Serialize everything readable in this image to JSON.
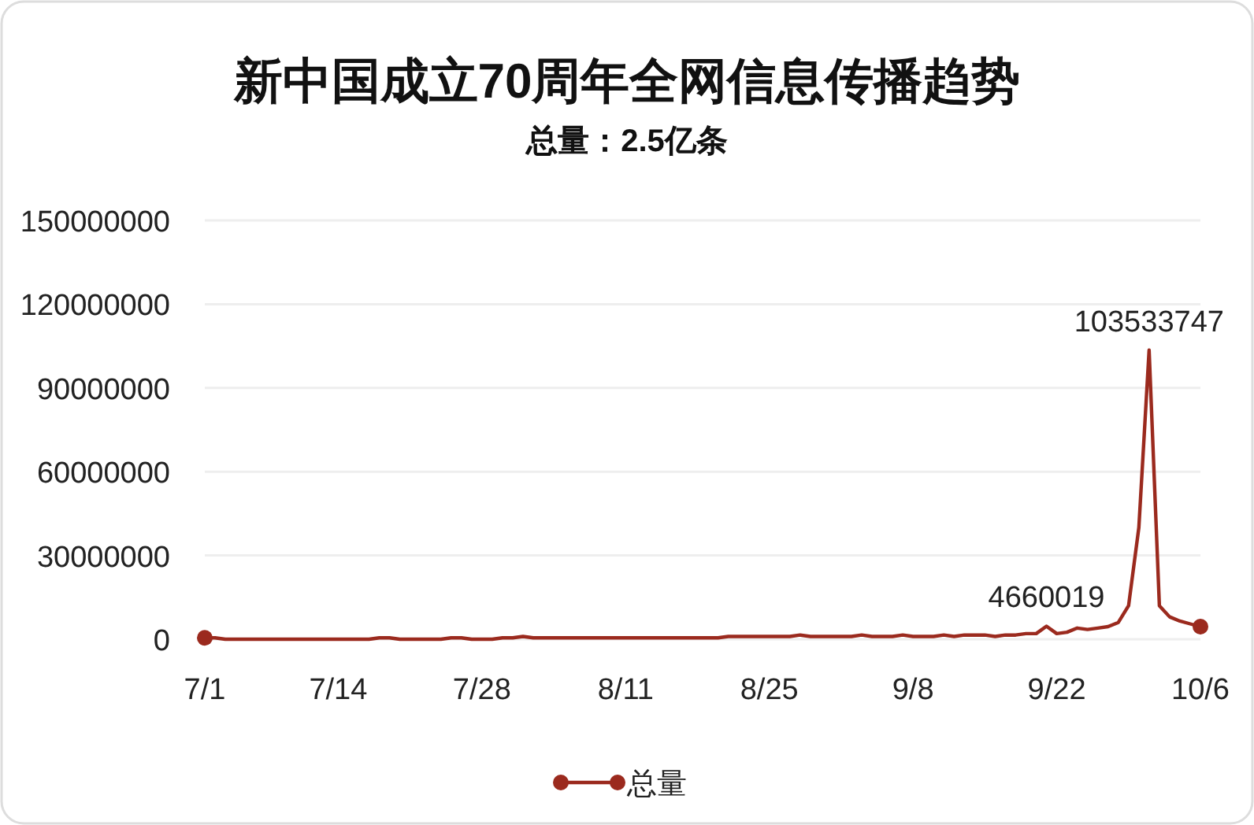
{
  "chart_data": {
    "type": "line",
    "title": "新中国成立70周年全网信息传播趋势",
    "subtitle": "总量：2.5亿条",
    "categories": [
      "7/1",
      null,
      null,
      null,
      null,
      null,
      null,
      null,
      null,
      null,
      null,
      null,
      null,
      "7/14",
      null,
      null,
      null,
      null,
      null,
      null,
      null,
      null,
      null,
      null,
      null,
      null,
      null,
      "7/28",
      null,
      null,
      null,
      null,
      null,
      null,
      null,
      null,
      null,
      null,
      null,
      null,
      null,
      "8/11",
      null,
      null,
      null,
      null,
      null,
      null,
      null,
      null,
      null,
      null,
      null,
      null,
      null,
      "8/25",
      null,
      null,
      null,
      null,
      null,
      null,
      null,
      null,
      null,
      null,
      null,
      null,
      null,
      "9/8",
      null,
      null,
      null,
      null,
      null,
      null,
      null,
      null,
      null,
      null,
      null,
      null,
      null,
      "9/22",
      null,
      null,
      null,
      null,
      null,
      null,
      null,
      null,
      null,
      null,
      null,
      null,
      null,
      "10/6"
    ],
    "series": [
      {
        "name": "总量",
        "color": "#9b2a1e",
        "values": [
          500000,
          500000,
          0,
          0,
          0,
          0,
          0,
          0,
          0,
          0,
          0,
          0,
          0,
          0,
          0,
          0,
          0,
          500000,
          500000,
          0,
          0,
          0,
          0,
          0,
          500000,
          500000,
          0,
          0,
          0,
          500000,
          500000,
          1000000,
          500000,
          500000,
          500000,
          500000,
          500000,
          500000,
          500000,
          500000,
          500000,
          500000,
          500000,
          500000,
          500000,
          500000,
          500000,
          500000,
          500000,
          500000,
          500000,
          1000000,
          1000000,
          1000000,
          1000000,
          1000000,
          1000000,
          1000000,
          1500000,
          1000000,
          1000000,
          1000000,
          1000000,
          1000000,
          1500000,
          1000000,
          1000000,
          1000000,
          1500000,
          1000000,
          1000000,
          1000000,
          1500000,
          1000000,
          1500000,
          1500000,
          1500000,
          1000000,
          1500000,
          1500000,
          2000000,
          2000000,
          4660019,
          2000000,
          2500000,
          4000000,
          3500000,
          4000000,
          4500000,
          6000000,
          12000000,
          40000000,
          103533747,
          12000000,
          8000000,
          6500000,
          5500000,
          4500000
        ],
        "value_labels": [
          null,
          null,
          null,
          null,
          null,
          null,
          null,
          null,
          null,
          null,
          null,
          null,
          null,
          null,
          null,
          null,
          null,
          null,
          null,
          null,
          null,
          null,
          null,
          null,
          null,
          null,
          null,
          null,
          null,
          null,
          null,
          null,
          null,
          null,
          null,
          null,
          null,
          null,
          null,
          null,
          null,
          null,
          null,
          null,
          null,
          null,
          null,
          null,
          null,
          null,
          null,
          null,
          null,
          null,
          null,
          null,
          null,
          null,
          null,
          null,
          null,
          null,
          null,
          null,
          null,
          null,
          null,
          null,
          null,
          null,
          null,
          null,
          null,
          null,
          null,
          null,
          null,
          null,
          null,
          null,
          null,
          null,
          "4660019",
          null,
          null,
          null,
          null,
          null,
          null,
          null,
          null,
          null,
          "103533747",
          null,
          null,
          null,
          null,
          null
        ]
      }
    ],
    "ylim": [
      0,
      150000000
    ],
    "yticks": [
      0,
      30000000,
      60000000,
      90000000,
      120000000,
      150000000
    ],
    "grid": "y",
    "legend": "bottom"
  }
}
